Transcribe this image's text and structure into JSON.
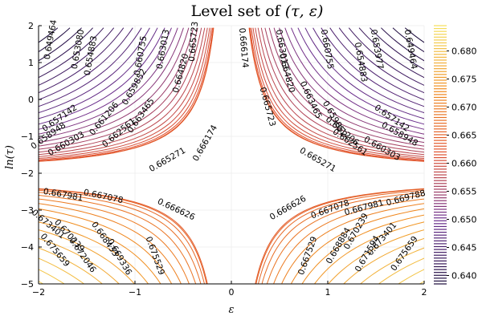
{
  "chart_data": {
    "type": "contour",
    "title": "Level set of (τ, ε)",
    "title_prefix": "Level set of ",
    "title_math": "(τ, ε)",
    "xlabel": "ε",
    "ylabel": "ln(τ)",
    "xlim": [
      -2,
      2
    ],
    "ylim": [
      -5,
      2
    ],
    "x_ticks": [
      -2,
      -1,
      0,
      1,
      2
    ],
    "y_ticks": [
      -5,
      -4,
      -3,
      -2,
      -1,
      0,
      1,
      2
    ],
    "grid": true,
    "colormap": "inferno (purple to orange to yellow)",
    "colors": {
      "low": "#1a0a3b",
      "mid_low": "#6b2d8e",
      "mid": "#e0502e",
      "mid_high": "#f08a1c",
      "high": "#f5e05b",
      "background": "#ffffff"
    },
    "colorbar": {
      "ticks": [
        0.64,
        0.645,
        0.65,
        0.655,
        0.66,
        0.665,
        0.67,
        0.675,
        0.68
      ],
      "tick_labels": [
        "0.640",
        "0.645",
        "0.650",
        "0.655",
        "0.660",
        "0.665",
        "0.670",
        "0.675",
        "0.680"
      ],
      "range": [
        0.6385,
        0.6845
      ]
    },
    "contour_labels": {
      "upper_left": [
        "0.649464",
        "0.653080",
        "0.654883",
        "0.660755",
        "0.663013",
        "0.665723",
        "0.664820",
        "0.659852",
        "0.657142",
        "0.658948",
        "0.660303",
        "0.661206",
        "0.662561",
        "0.663465",
        "0.665271",
        "0.666174"
      ],
      "upper_right": [
        "0.666174",
        "0.663013",
        "0.664820",
        "0.665723",
        "0.663465",
        "0.660755",
        "0.659852",
        "0.654883",
        "0.653977",
        "0.649464",
        "0.661206",
        "0.662561",
        "0.660303",
        "0.657142",
        "0.658948",
        "0.665271"
      ],
      "lower_left": [
        "0.667981",
        "0.667078",
        "0.666626",
        "0.673401",
        "0.670239",
        "0.668433",
        "0.672046",
        "0.675659",
        "0.669336",
        "0.675529"
      ],
      "lower_right": [
        "0.666626",
        "0.667078",
        "0.667981",
        "0.669788",
        "0.667529",
        "0.668884",
        "0.670239",
        "0.673401",
        "0.671594",
        "0.675659"
      ]
    }
  }
}
